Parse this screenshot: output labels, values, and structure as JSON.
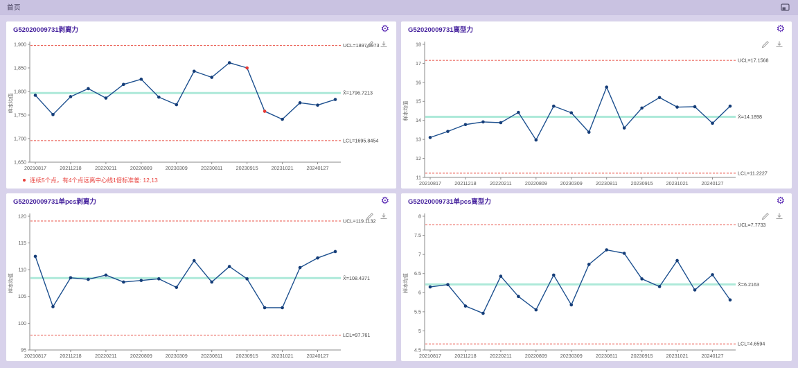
{
  "topbar": {
    "tab": "首页"
  },
  "colors": {
    "accent_purple": "#47249e",
    "gear_purple": "#5d2eb5",
    "series_line": "#1d508f",
    "marker": "#153d78",
    "marker_alert": "#e53935",
    "center_line": "#a9e8d8",
    "limit_red": "#e84c41",
    "limit_pink": "#f29a94",
    "axis_gray": "#8a8a8a",
    "tick_text": "#5a5a5a",
    "label_text": "#444444"
  },
  "icons": {
    "window": "restore-window-icon",
    "settings": "gear-icon",
    "settings_glyph": "⚙",
    "edit": "pencil-icon",
    "download": "download-icon"
  },
  "panels": [
    {
      "title": "G52020009731剥离力",
      "warning": {
        "text": "连续5个点，有4个点远离中心线1倍标准差: 12,13"
      },
      "chart_data": {
        "type": "line",
        "ylabel": "样本均值",
        "ylim": [
          1650,
          1900
        ],
        "yticks": [
          1900,
          1850,
          1800,
          1750,
          1700,
          1650
        ],
        "ytick_labels": [
          "1,900",
          "1,850",
          "1,800",
          "1,750",
          "1,700",
          "1,650"
        ],
        "x_tick_labels": [
          "20210817",
          "20211218",
          "20220211",
          "20220809",
          "20230309",
          "20230811",
          "20230915",
          "20231021",
          "20240127"
        ],
        "values": [
          1792,
          1751,
          1789,
          1806,
          1786,
          1815,
          1826,
          1788,
          1772,
          1843,
          1830,
          1861,
          1850,
          1758,
          1741,
          1776,
          1771,
          1783
        ],
        "red_point_indexes": [
          12,
          13
        ],
        "ucl": {
          "value": 1897.5973,
          "label": "UCL=1897.5973"
        },
        "center": {
          "value": 1796.7213,
          "label": "X̄=1796.7213"
        },
        "lcl": {
          "value": 1695.8454,
          "label": "LCL=1695.8454"
        },
        "legend_position": "none",
        "grid": false
      }
    },
    {
      "title": "G52020009731离型力",
      "warning": null,
      "chart_data": {
        "type": "line",
        "ylabel": "样本均值",
        "ylim": [
          11,
          18
        ],
        "yticks": [
          18,
          17,
          16,
          15,
          14,
          13,
          12,
          11
        ],
        "ytick_labels": [
          "18",
          "17",
          "16",
          "15",
          "14",
          "13",
          "12",
          "11"
        ],
        "x_tick_labels": [
          "20210817",
          "20211218",
          "20220211",
          "20220809",
          "20230309",
          "20230811",
          "20230915",
          "20231021",
          "20240127"
        ],
        "values": [
          13.1,
          13.42,
          13.78,
          13.92,
          13.88,
          14.42,
          12.97,
          14.75,
          14.4,
          13.38,
          15.75,
          13.6,
          14.65,
          15.2,
          14.7,
          14.72,
          13.85,
          14.75
        ],
        "red_point_indexes": [],
        "ucl": {
          "value": 17.1568,
          "label": "UCL=17.1568"
        },
        "center": {
          "value": 14.1898,
          "label": "X̄=14.1898"
        },
        "lcl": {
          "value": 11.2227,
          "label": "LCL=11.2227"
        },
        "legend_position": "none",
        "grid": false
      }
    },
    {
      "title": "G52020009731单pcs剥离力",
      "warning": null,
      "chart_data": {
        "type": "line",
        "ylabel": "样本均值",
        "ylim": [
          95,
          120
        ],
        "yticks": [
          120,
          115,
          110,
          105,
          100,
          95
        ],
        "ytick_labels": [
          "120",
          "115",
          "110",
          "105",
          "100",
          "95"
        ],
        "x_tick_labels": [
          "20210817",
          "20211218",
          "20220211",
          "20220809",
          "20230309",
          "20230811",
          "20230915",
          "20231021",
          "20240127"
        ],
        "values": [
          112.5,
          103.1,
          108.5,
          108.2,
          109.0,
          107.7,
          108.0,
          108.3,
          106.7,
          111.7,
          107.7,
          110.6,
          108.3,
          102.9,
          102.9,
          110.4,
          112.2,
          113.4
        ],
        "red_point_indexes": [],
        "ucl": {
          "value": 119.1132,
          "label": "UCL=119.1132",
          "light": true
        },
        "center": {
          "value": 108.4371,
          "label": "X̄=108.4371"
        },
        "lcl": {
          "value": 97.761,
          "label": "LCL=97.761"
        },
        "legend_position": "none",
        "grid": false
      }
    },
    {
      "title": "G52020009731单pcs离型力",
      "warning": null,
      "chart_data": {
        "type": "line",
        "ylabel": "样本均值",
        "ylim": [
          4.5,
          8
        ],
        "yticks": [
          8,
          7.5,
          7,
          6.5,
          6,
          5.5,
          5,
          4.5
        ],
        "ytick_labels": [
          "8",
          "7.5",
          "7",
          "6.5",
          "6",
          "5.5",
          "5",
          "4.5"
        ],
        "x_tick_labels": [
          "20210817",
          "20211218",
          "20220211",
          "20220809",
          "20230309",
          "20230811",
          "20230915",
          "20231021",
          "20240127"
        ],
        "values": [
          6.15,
          6.21,
          5.65,
          5.46,
          6.43,
          5.9,
          5.55,
          6.46,
          5.68,
          6.74,
          7.12,
          7.03,
          6.36,
          6.16,
          6.84,
          6.07,
          6.47,
          5.81
        ],
        "red_point_indexes": [],
        "ucl": {
          "value": 7.7733,
          "label": "UCL=7.7733"
        },
        "center": {
          "value": 6.2163,
          "label": "X̄=6.2163"
        },
        "lcl": {
          "value": 4.6594,
          "label": "LCL=4.6594"
        },
        "legend_position": "none",
        "grid": false
      }
    }
  ]
}
